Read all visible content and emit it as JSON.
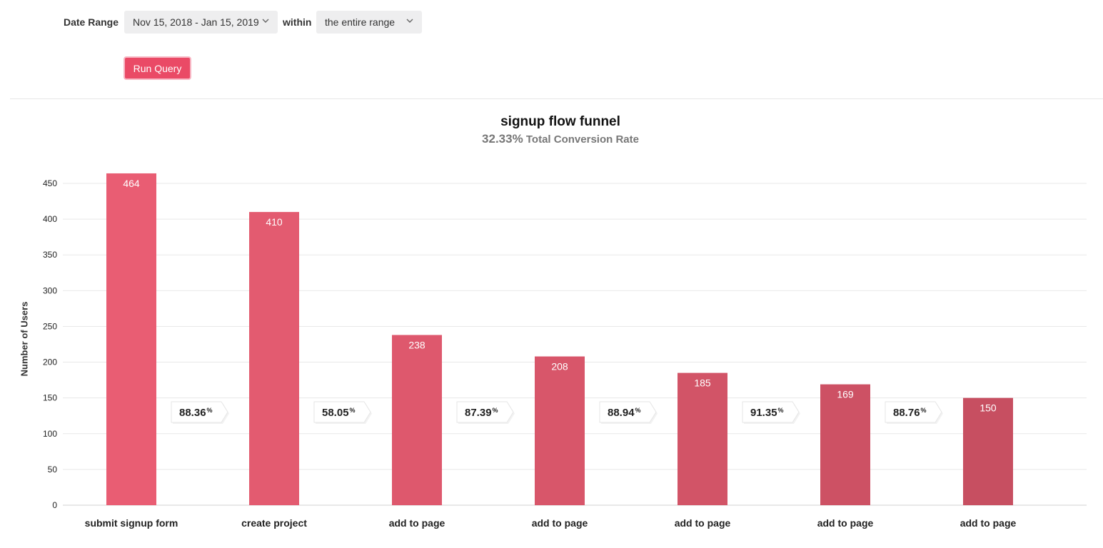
{
  "controls": {
    "date_range_label": "Date Range",
    "date_range_value": "Nov 15, 2018 - Jan 15, 2019",
    "within_label": "within",
    "within_value": "the entire range",
    "run_button": "Run Query"
  },
  "chart_header": {
    "title": "signup flow funnel",
    "total_rate": "32.33%",
    "total_rate_label": "Total Conversion Rate"
  },
  "colors": {
    "accent": "#ea4a66",
    "bar_first": "#e95d73",
    "bar_last": "#c74f61"
  },
  "chart_data": {
    "type": "bar",
    "title": "signup flow funnel",
    "ylabel": "Number of Users",
    "xlabel": "",
    "ylim": [
      0,
      450
    ],
    "yticks": [
      0,
      50,
      100,
      150,
      200,
      250,
      300,
      350,
      400,
      450
    ],
    "grid": true,
    "categories": [
      "submit signup form",
      "create project",
      "add to page",
      "add to page",
      "add to page",
      "add to page",
      "add to page"
    ],
    "values": [
      464,
      410,
      238,
      208,
      185,
      169,
      150
    ],
    "step_conversion": [
      "88.36",
      "58.05",
      "87.39",
      "88.94",
      "91.35",
      "88.76"
    ],
    "step_conversion_unit": "%"
  }
}
